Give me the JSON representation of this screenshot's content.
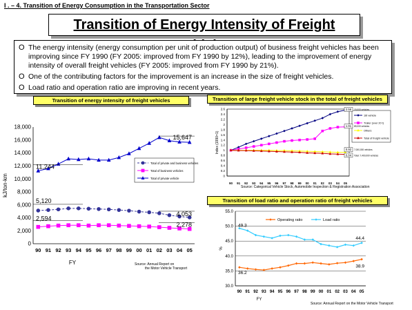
{
  "section_title": "I . – 4. Transition of Energy Consumption in the Transportation Sector",
  "main_title": "Transition of Energy Intensity of Freight Vehicles",
  "bullets": [
    "The energy intensity (energy consumption per unit of production output) of business freight vehicles has been improving since FY 1990 (FY 2005: improved from FY 1990 by 12%), leading to the improvement of energy intensity of overall freight vehicles (FY 2005: improved from FY 1990 by 21%).",
    "One of the contributing factors for the improvement is an increase in the size of freight vehicles.",
    "Load ratio and operation ratio are improving in recent years."
  ],
  "bullet_mark": "O",
  "chart_data": [
    {
      "type": "line",
      "title": "Transition of energy intensity of freight vehicles",
      "xlabel": "FY",
      "ylabel": "kJ/ton-km",
      "categories": [
        "90",
        "91",
        "92",
        "93",
        "94",
        "95",
        "96",
        "97",
        "98",
        "99",
        "00",
        "01",
        "02",
        "03",
        "04",
        "05"
      ],
      "ylim": [
        0,
        18000
      ],
      "yticks": [
        "0",
        "2,000",
        "4,000",
        "6,000",
        "8,000",
        "10,000",
        "12,000",
        "14,000",
        "16,000",
        "18,000"
      ],
      "series": [
        {
          "name": "Total of private and business vehicles",
          "color": "#333399",
          "marker": "circle",
          "dashed": true,
          "values": [
            5120,
            5200,
            5300,
            5450,
            5450,
            5400,
            5350,
            5300,
            5200,
            5100,
            4950,
            4850,
            4700,
            4400,
            4200,
            4053
          ]
        },
        {
          "name": "Total of business vehicles",
          "color": "#ff00ff",
          "marker": "square",
          "dashed": false,
          "values": [
            2594,
            2700,
            2800,
            2850,
            2850,
            2800,
            2850,
            2850,
            2800,
            2750,
            2700,
            2650,
            2550,
            2450,
            2350,
            2278
          ]
        },
        {
          "name": "Total of private vehicle",
          "color": "#0000cc",
          "marker": "triangle",
          "dashed": false,
          "values": [
            11244,
            11600,
            12300,
            13100,
            13000,
            13100,
            12900,
            12900,
            13300,
            13900,
            14700,
            15500,
            16400,
            15900,
            15700,
            15647
          ]
        }
      ],
      "annotations": [
        "11,244",
        "15,647",
        "5,120",
        "4,053",
        "2,594",
        "2,278"
      ],
      "source": "Source:  Annual Report on the Motor Vehicle Transport"
    },
    {
      "type": "line",
      "title": "Transition of large freight vehicle stock in the total of freight vehicles",
      "xlabel": "",
      "ylabel": "Index (1990=1)",
      "categories": [
        "90",
        "91",
        "92",
        "93",
        "94",
        "95",
        "96",
        "97",
        "98",
        "99",
        "00",
        "01",
        "02",
        "03",
        "04",
        "05"
      ],
      "ylim": [
        0,
        2.6
      ],
      "yticks": [
        "0",
        "0.2",
        "0.4",
        "0.6",
        "0.8",
        "1",
        "1.2",
        "1.4",
        "1.6",
        "1.8",
        "2",
        "2.2",
        "2.4",
        "2.6"
      ],
      "series": [
        {
          "name": "16t vehicle",
          "color": "#000080",
          "marker": "diamond",
          "values": [
            1,
            1.12,
            1.25,
            1.35,
            1.45,
            1.55,
            1.65,
            1.75,
            1.85,
            1.95,
            2.05,
            2.15,
            2.25,
            2.4,
            2.5,
            2.56
          ]
        },
        {
          "name": "Trailer (over 20 t)",
          "color": "#ff00ff",
          "marker": "square",
          "values": [
            1,
            1.05,
            1.1,
            1.15,
            1.2,
            1.25,
            1.3,
            1.35,
            1.38,
            1.4,
            1.42,
            1.45,
            1.75,
            1.85,
            1.9,
            1.91
          ]
        },
        {
          "name": "Others",
          "color": "#ffff00",
          "marker": "triangle",
          "values": [
            1,
            1,
            1,
            1,
            1,
            1,
            0.99,
            0.99,
            0.98,
            0.97,
            0.96,
            0.95,
            0.94,
            0.93,
            0.92,
            0.92
          ]
        },
        {
          "name": "Total of freight vehicle",
          "color": "#cc0000",
          "marker": "triangle",
          "values": [
            1,
            0.99,
            0.99,
            0.98,
            0.97,
            0.96,
            0.95,
            0.94,
            0.93,
            0.92,
            0.9,
            0.89,
            0.88,
            0.86,
            0.85,
            0.84
          ]
        }
      ],
      "end_labels": [
        "2.56",
        "1.91",
        "0.92",
        "0.84"
      ],
      "end_notes": [
        "15,000 vehicles",
        "89,000 vehicles",
        "7,000,000 vehicles",
        "Total: 7,400,000 vehicles"
      ],
      "source": "Source:  Categorical Vehicle Stock, Automobile Inspection & Registration Association"
    },
    {
      "type": "line",
      "title": "Transition of load ratio and operation ratio of freight vehicles",
      "xlabel": "FY",
      "ylabel": "%",
      "categories": [
        "90",
        "91",
        "92",
        "93",
        "94",
        "95",
        "96",
        "97",
        "98",
        "99",
        "00",
        "01",
        "02",
        "03",
        "04",
        "05"
      ],
      "ylim": [
        30,
        55
      ],
      "yticks": [
        "30.0",
        "35.0",
        "40.0",
        "45.0",
        "50.0",
        "55.0"
      ],
      "series": [
        {
          "name": "Operating ratio",
          "color": "#ff6600",
          "marker": "diamond",
          "values": [
            36.2,
            35.8,
            35.5,
            35.3,
            35.8,
            36.2,
            36.8,
            37.5,
            37.5,
            37.8,
            37.5,
            37.2,
            37.6,
            37.8,
            38.3,
            38.9
          ]
        },
        {
          "name": "Load ratio",
          "color": "#33ccff",
          "marker": "diamond",
          "values": [
            49.3,
            48.5,
            47,
            46.5,
            46,
            46.8,
            47,
            46.5,
            45.5,
            45.5,
            44,
            43.5,
            43,
            43.8,
            43.5,
            44.4
          ]
        }
      ],
      "annotations": [
        "49.3",
        "44.4",
        "36.2",
        "38.9"
      ],
      "source": "Source:  Annual Report on the Motor Vehicle Transport"
    }
  ]
}
